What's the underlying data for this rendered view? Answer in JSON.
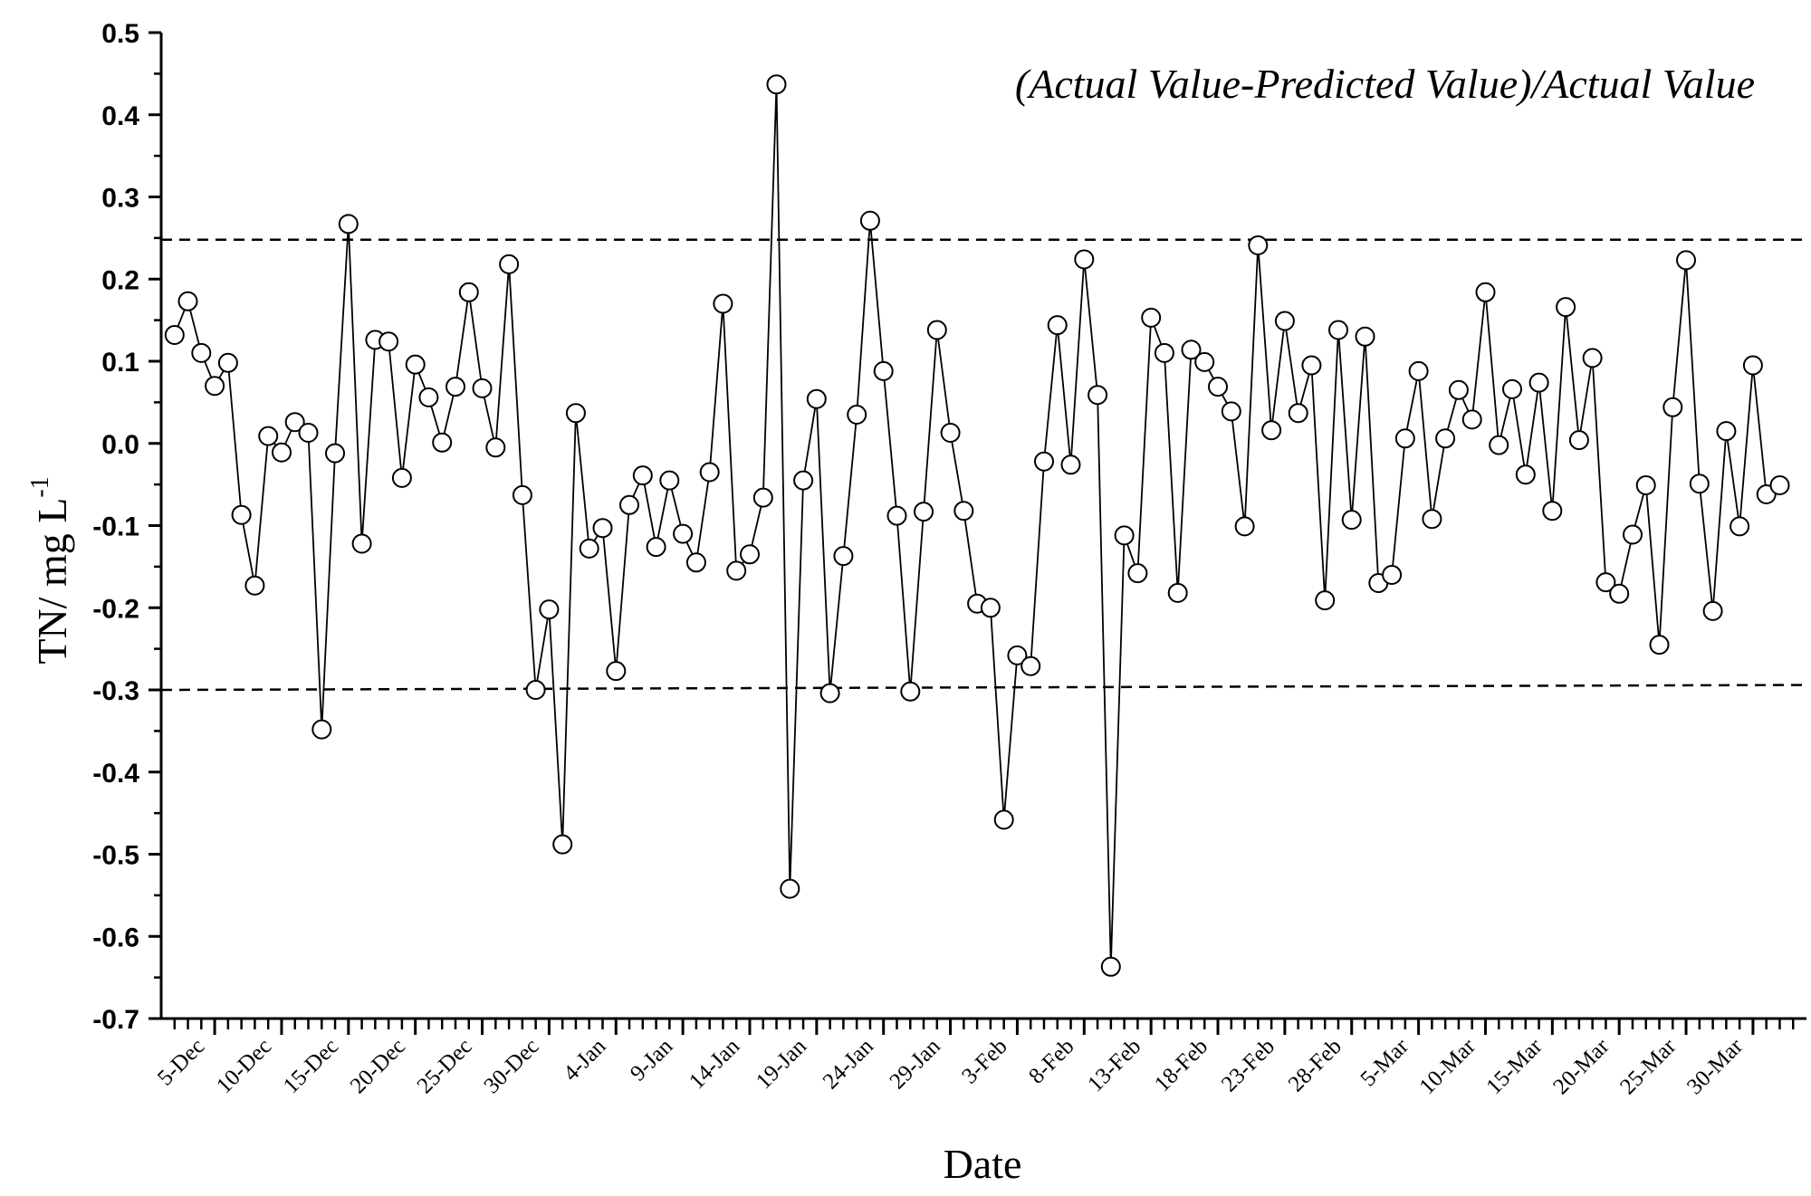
{
  "chart_data": {
    "type": "line",
    "title": "",
    "annotation": "(Actual Value-Predicted Value)/Actual Value",
    "xlabel": "Date",
    "ylabel": "TN/ mg L",
    "ylabel_superscript": "-1",
    "ylim": [
      -0.7,
      0.5
    ],
    "yticks": [
      "0.5",
      "0.4",
      "0.3",
      "0.2",
      "0.1",
      "0.0",
      "-0.1",
      "-0.2",
      "-0.3",
      "-0.4",
      "-0.5",
      "-0.6",
      "-0.7"
    ],
    "xticks": [
      "5-Dec",
      "10-Dec",
      "15-Dec",
      "20-Dec",
      "25-Dec",
      "30-Dec",
      "4-Jan",
      "9-Jan",
      "14-Jan",
      "19-Jan",
      "24-Jan",
      "29-Jan",
      "3-Feb",
      "8-Feb",
      "13-Feb",
      "18-Feb",
      "23-Feb",
      "28-Feb",
      "5-Mar",
      "10-Mar",
      "15-Mar",
      "20-Mar",
      "25-Mar",
      "30-Mar"
    ],
    "x_start": "1-Dec",
    "x_end": "3-Apr",
    "series_start": "2-Dec",
    "reference_lines": [
      {
        "label": "upper threshold",
        "from": 0.248,
        "to": 0.248
      },
      {
        "label": "lower threshold",
        "from": -0.3,
        "to": -0.294
      }
    ],
    "grid": false,
    "marker": "open-circle",
    "line_color": "#000000",
    "series": [
      {
        "values": [
          0.132,
          0.173,
          0.11,
          0.07,
          0.098,
          -0.087,
          -0.173,
          0.009,
          -0.011,
          0.026,
          0.013,
          -0.348,
          -0.012,
          0.267,
          -0.122,
          0.126,
          0.124,
          -0.042,
          0.096,
          0.056,
          0.001,
          0.069,
          0.184,
          0.067,
          -0.005,
          0.218,
          -0.063,
          -0.3,
          -0.202,
          -0.488,
          0.037,
          -0.128,
          -0.103,
          -0.277,
          -0.075,
          -0.039,
          -0.126,
          -0.045,
          -0.11,
          -0.145,
          -0.035,
          0.17,
          -0.155,
          -0.135,
          -0.066,
          0.437,
          -0.542,
          -0.045,
          0.054,
          -0.304,
          -0.137,
          0.035,
          0.271,
          0.088,
          -0.088,
          -0.302,
          -0.083,
          0.138,
          0.013,
          -0.082,
          -0.195,
          -0.2,
          -0.458,
          -0.258,
          -0.271,
          -0.022,
          0.144,
          -0.026,
          0.224,
          0.059,
          -0.637,
          -0.112,
          -0.158,
          0.153,
          0.11,
          -0.182,
          0.114,
          0.099,
          0.069,
          0.039,
          -0.101,
          0.241,
          0.016,
          0.149,
          0.037,
          0.095,
          -0.191,
          0.138,
          -0.093,
          0.13,
          -0.17,
          -0.16,
          0.006,
          0.088,
          -0.092,
          0.006,
          0.065,
          0.029,
          0.184,
          -0.002,
          0.066,
          -0.038,
          0.074,
          -0.082,
          0.166,
          0.004,
          0.104,
          -0.169,
          -0.183,
          -0.111,
          -0.051,
          -0.245,
          0.044,
          0.223,
          -0.049,
          -0.204,
          0.015,
          -0.101,
          0.095,
          -0.062,
          -0.051
        ]
      }
    ]
  }
}
